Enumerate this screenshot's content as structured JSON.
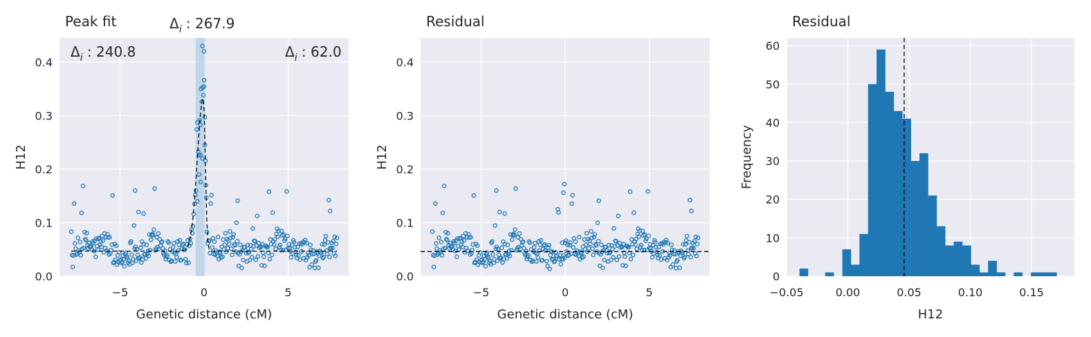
{
  "colors": {
    "points": "#1f77b4",
    "bars": "#1f77b4",
    "shade": "#9ec2e0",
    "plot_bg": "#eaeaf2",
    "fit_line": "#000000"
  },
  "chart_data": [
    {
      "type": "scatter",
      "title": "Peak fit",
      "xlabel": "Genetic distance (cM)",
      "ylabel": "H12",
      "xlim": [
        -8.6,
        8.6
      ],
      "ylim": [
        0,
        0.445
      ],
      "xticks": [
        -5,
        0,
        5
      ],
      "yticks": [
        0.0,
        0.1,
        0.2,
        0.3,
        0.4
      ],
      "grid": true,
      "annotations": [
        {
          "sym": "Δ",
          "sub": "i",
          "value": " : 267.9",
          "position": "top-center"
        },
        {
          "sym": "Δ",
          "sub": "i",
          "value": " : 240.8",
          "position": "upper-left"
        },
        {
          "sym": "Δ",
          "sub": "i",
          "value": " : 62.0",
          "position": "upper-right"
        }
      ],
      "shaded_region": {
        "x": [
          -0.5,
          0.05
        ]
      },
      "fit_line": {
        "baseline": 0.047,
        "peak_x": -0.05,
        "peak_y": 0.333,
        "width_left": 0.35,
        "width_right": 0.12,
        "style": "dashed"
      },
      "points": {
        "x_start": -7.9,
        "x_end": 7.9,
        "n": 361,
        "baseline": 0.047
      }
    },
    {
      "type": "scatter",
      "title": "Residual",
      "xlabel": "Genetic distance (cM)",
      "ylabel": "H12",
      "xlim": [
        -8.6,
        8.6
      ],
      "ylim": [
        0,
        0.445
      ],
      "xticks": [
        -5,
        0,
        5
      ],
      "yticks": [
        0.0,
        0.1,
        0.2,
        0.3,
        0.4
      ],
      "grid": true,
      "hline": {
        "y": 0.046,
        "style": "dashed"
      }
    },
    {
      "type": "bar",
      "title": "Residual",
      "xlabel": "H12",
      "ylabel": "Frequency",
      "xlim": [
        -0.05,
        0.185
      ],
      "ylim": [
        0,
        62
      ],
      "xticks": [
        -0.05,
        0.0,
        0.05,
        0.1,
        0.15
      ],
      "xtick_labels": [
        "−0.05",
        "0.00",
        "0.05",
        "0.10",
        "0.15"
      ],
      "yticks": [
        0,
        10,
        20,
        30,
        40,
        50,
        60
      ],
      "grid": true,
      "vline": {
        "x": 0.046,
        "style": "dashed"
      },
      "bin_start": -0.0395,
      "bin_width": 0.007,
      "counts": [
        2,
        0,
        0,
        1,
        0,
        7,
        3,
        11,
        50,
        59,
        48,
        43,
        41,
        30,
        32,
        21,
        13,
        8,
        9,
        8,
        3,
        1,
        4,
        1,
        0,
        1,
        0,
        1,
        1,
        1
      ]
    }
  ]
}
